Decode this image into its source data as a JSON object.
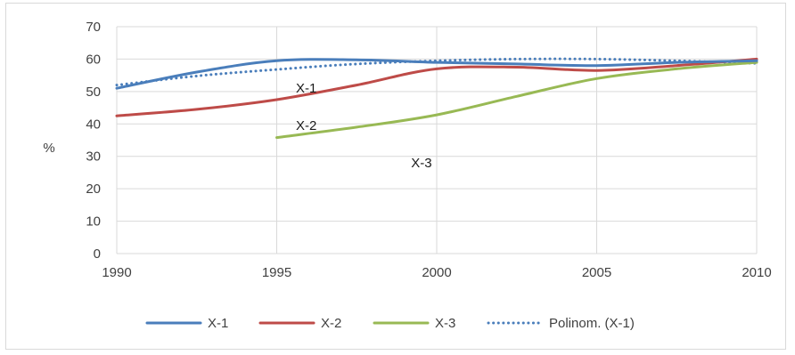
{
  "chart_data": {
    "type": "line",
    "title": "",
    "xlabel": "",
    "ylabel": "%",
    "xlim": [
      1990,
      2010
    ],
    "ylim": [
      0,
      70
    ],
    "x_ticks": [
      1990,
      1995,
      2000,
      2005,
      2010
    ],
    "y_ticks": [
      0,
      10,
      20,
      30,
      40,
      50,
      60,
      70
    ],
    "grid": "horizontal",
    "legend_position": "bottom",
    "series": [
      {
        "name": "X-1",
        "color": "#4a7ebb",
        "style": "solid",
        "x": [
          1990,
          1992.5,
          1995,
          1997.5,
          2000,
          2002.5,
          2005,
          2007.5,
          2010
        ],
        "y": [
          51,
          56,
          59.5,
          59.8,
          59,
          58.5,
          58,
          59,
          59.5
        ]
      },
      {
        "name": "X-2",
        "color": "#be4b48",
        "style": "solid",
        "x": [
          1990,
          1992.5,
          1995,
          1997.5,
          2000,
          2002.5,
          2005,
          2007.5,
          2010
        ],
        "y": [
          42.5,
          44.5,
          47.5,
          52,
          57,
          57.5,
          56.5,
          58,
          60
        ]
      },
      {
        "name": "X-3",
        "color": "#98b954",
        "style": "solid",
        "x": [
          1995,
          1997.5,
          2000,
          2002.5,
          2005,
          2007.5,
          2010
        ],
        "y": [
          35.8,
          39,
          42.8,
          48.5,
          54,
          57,
          59
        ]
      },
      {
        "name": "Polinom. (X-1)",
        "color": "#4a7ebb",
        "style": "dotted",
        "x": [
          1990,
          1992.5,
          1995,
          1997.5,
          2000,
          2002.5,
          2005,
          2007.5,
          2010
        ],
        "y": [
          52,
          54.8,
          56.8,
          58.5,
          59.5,
          60,
          60,
          59.5,
          58.7
        ]
      }
    ],
    "annotations": [
      {
        "text": "X-1",
        "x": 1995.6,
        "y": 51
      },
      {
        "text": "X-2",
        "x": 1995.6,
        "y": 39.5
      },
      {
        "text": "X-3",
        "x": 1999.2,
        "y": 28
      }
    ]
  }
}
